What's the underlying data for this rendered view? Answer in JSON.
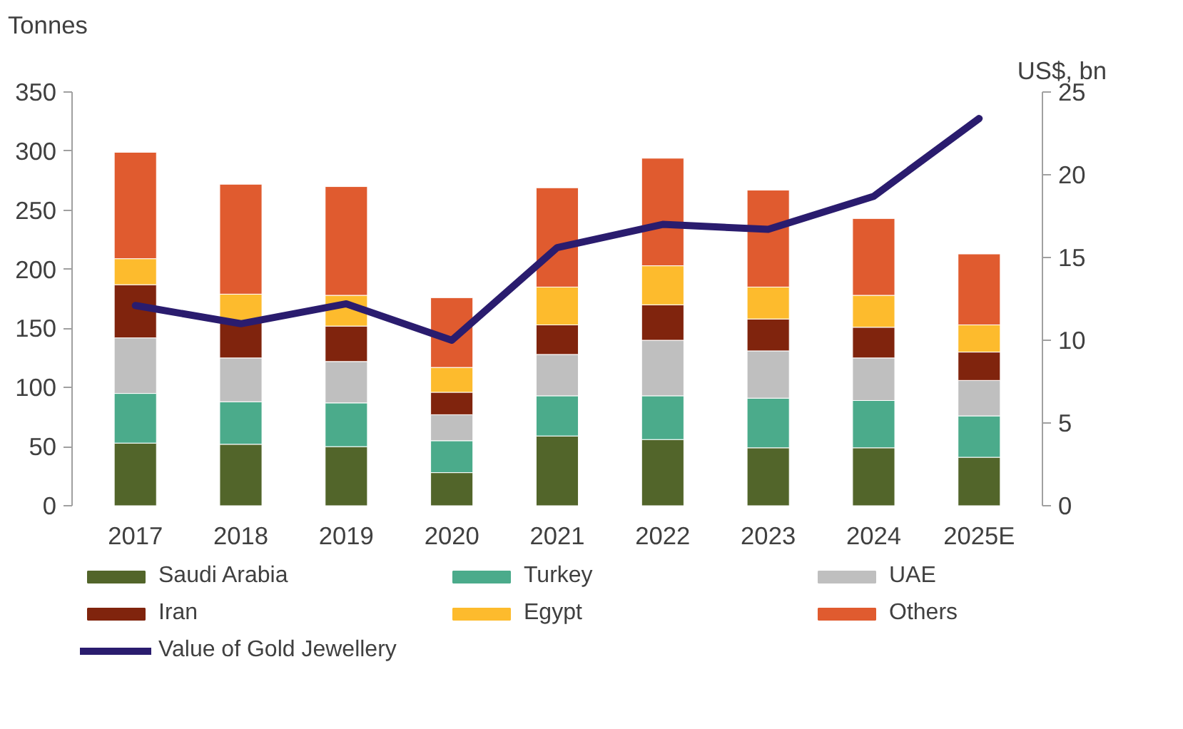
{
  "chart_data": {
    "type": "bar",
    "stacked": true,
    "ylabel": "Tonnes",
    "y2label": "US$, bn",
    "categories": [
      "2017",
      "2018",
      "2019",
      "2020",
      "2021",
      "2022",
      "2023",
      "2024",
      "2025E"
    ],
    "series": [
      {
        "name": "Saudi Arabia",
        "color": "#52652a",
        "values": [
          53,
          52,
          50,
          28,
          59,
          56,
          49,
          49,
          41
        ]
      },
      {
        "name": "Turkey",
        "color": "#4bab8b",
        "values": [
          42,
          36,
          37,
          27,
          34,
          37,
          42,
          40,
          35
        ]
      },
      {
        "name": "UAE",
        "color": "#bfbfbf",
        "values": [
          47,
          37,
          35,
          22,
          35,
          47,
          40,
          36,
          30
        ]
      },
      {
        "name": "Iran",
        "color": "#80240d",
        "values": [
          45,
          30,
          30,
          19,
          25,
          30,
          27,
          26,
          24
        ]
      },
      {
        "name": "Egypt",
        "color": "#fdbb2d",
        "values": [
          22,
          24,
          26,
          21,
          32,
          33,
          27,
          27,
          23
        ]
      },
      {
        "name": "Others",
        "color": "#e05b2f",
        "values": [
          90,
          93,
          92,
          59,
          84,
          91,
          82,
          65,
          60
        ]
      },
      {
        "name": "Value of Gold Jewellery",
        "color": "#2a1c6e",
        "type": "line",
        "axis": "y2",
        "values": [
          12.1,
          11.0,
          12.2,
          10.0,
          15.6,
          17.0,
          16.7,
          18.7,
          23.4
        ]
      }
    ],
    "ylim": [
      0,
      350
    ],
    "yticks": [
      0,
      50,
      100,
      150,
      200,
      250,
      300,
      350
    ],
    "y2lim": [
      0,
      25
    ],
    "y2ticks": [
      0,
      5,
      10,
      15,
      20,
      25
    ],
    "grid": false,
    "legend": "bottom"
  }
}
